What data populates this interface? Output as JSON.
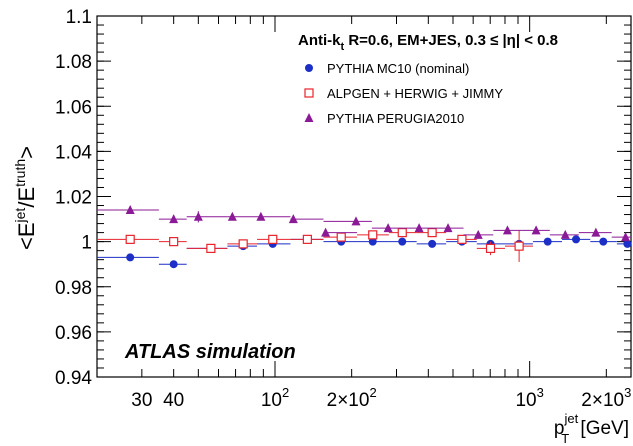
{
  "chart_data": {
    "type": "scatter",
    "xscale": "log",
    "xlim": [
      20,
      2500
    ],
    "ylim": [
      0.94,
      1.1
    ],
    "ylabel": {
      "main": "<E",
      "sup1": "jet",
      "slash": "/E",
      "sup2": "truth",
      "close": ">"
    },
    "xlabel": {
      "main": "p",
      "sup": "jet",
      "sub": "T",
      "unit": " [GeV]"
    },
    "y_ticks": [
      "0.94",
      "0.96",
      "0.98",
      "1",
      "1.02",
      "1.04",
      "1.06",
      "1.08",
      "1.1"
    ],
    "x_tick_labels": [
      {
        "value": 30,
        "text": "30"
      },
      {
        "value": 40,
        "text": "40"
      },
      {
        "value": 100,
        "base": "10",
        "exp": "2"
      },
      {
        "value": 200,
        "base": "2×10",
        "exp": "2"
      },
      {
        "value": 1000,
        "base": "10",
        "exp": "3"
      },
      {
        "value": 2000,
        "base": "2×10",
        "exp": "3"
      }
    ],
    "title": {
      "lead": "Anti-k",
      "lead_sub": "t",
      "rest": " R=0.6, EM+JES, 0.3 ≤ |η| < 0.8"
    },
    "annotation": "ATLAS simulation",
    "series": [
      {
        "name": "PYTHIA MC10 (nominal)",
        "color": "#1c2fc6",
        "marker": "circle",
        "points": [
          {
            "x": 27,
            "y": 0.993,
            "xlo": 20,
            "xhi": 35,
            "yerr": 0.0006
          },
          {
            "x": 40,
            "y": 0.99,
            "xlo": 35,
            "xhi": 45,
            "yerr": 0.0006
          },
          {
            "x": 56,
            "y": 0.997,
            "xlo": 45,
            "xhi": 65,
            "yerr": 0.0006
          },
          {
            "x": 75,
            "y": 0.998,
            "xlo": 65,
            "xhi": 85,
            "yerr": 0.0006
          },
          {
            "x": 98,
            "y": 0.999,
            "xlo": 85,
            "xhi": 115,
            "yerr": 0.0006
          },
          {
            "x": 134,
            "y": 1.001,
            "xlo": 115,
            "xhi": 155,
            "yerr": 0.0006
          },
          {
            "x": 182,
            "y": 1.0,
            "xlo": 155,
            "xhi": 210,
            "yerr": 0.0006
          },
          {
            "x": 242,
            "y": 1.0,
            "xlo": 210,
            "xhi": 280,
            "yerr": 0.0006
          },
          {
            "x": 316,
            "y": 1.0,
            "xlo": 280,
            "xhi": 360,
            "yerr": 0.0006
          },
          {
            "x": 414,
            "y": 0.999,
            "xlo": 360,
            "xhi": 470,
            "yerr": 0.0006
          },
          {
            "x": 542,
            "y": 1.0,
            "xlo": 470,
            "xhi": 620,
            "yerr": 0.0006
          },
          {
            "x": 702,
            "y": 0.999,
            "xlo": 620,
            "xhi": 800,
            "yerr": 0.0006
          },
          {
            "x": 909,
            "y": 0.999,
            "xlo": 800,
            "xhi": 1030,
            "yerr": 0.0006
          },
          {
            "x": 1177,
            "y": 1.0,
            "xlo": 1030,
            "xhi": 1340,
            "yerr": 0.0006
          },
          {
            "x": 1521,
            "y": 1.001,
            "xlo": 1340,
            "xhi": 1730,
            "yerr": 0.0006
          },
          {
            "x": 1946,
            "y": 1.0,
            "xlo": 1730,
            "xhi": 2200,
            "yerr": 0.0006
          },
          {
            "x": 2420,
            "y": 0.999,
            "xlo": 2200,
            "xhi": 2500,
            "yerr": 0.0006
          }
        ]
      },
      {
        "name": "ALPGEN + HERWIG + JIMMY",
        "color": "#e8232b",
        "marker": "square-open",
        "points": [
          {
            "x": 27,
            "y": 1.001,
            "xlo": 20,
            "xhi": 35,
            "yerr": 0.0006
          },
          {
            "x": 40,
            "y": 1.0,
            "xlo": 35,
            "xhi": 45,
            "yerr": 0.0006
          },
          {
            "x": 56,
            "y": 0.997,
            "xlo": 45,
            "xhi": 65,
            "yerr": 0.0006
          },
          {
            "x": 75,
            "y": 0.999,
            "xlo": 65,
            "xhi": 85,
            "yerr": 0.0006
          },
          {
            "x": 98,
            "y": 1.001,
            "xlo": 85,
            "xhi": 115,
            "yerr": 0.0006
          },
          {
            "x": 134,
            "y": 1.001,
            "xlo": 115,
            "xhi": 155,
            "yerr": 0.0006
          },
          {
            "x": 182,
            "y": 1.002,
            "xlo": 155,
            "xhi": 210,
            "yerr": 0.0006
          },
          {
            "x": 242,
            "y": 1.003,
            "xlo": 210,
            "xhi": 280,
            "yerr": 0.0006
          },
          {
            "x": 316,
            "y": 1.004,
            "xlo": 280,
            "xhi": 360,
            "yerr": 0.0006
          },
          {
            "x": 414,
            "y": 1.004,
            "xlo": 360,
            "xhi": 470,
            "yerr": 0.0006
          },
          {
            "x": 542,
            "y": 1.001,
            "xlo": 470,
            "xhi": 620,
            "yerr": 0.0006
          },
          {
            "x": 702,
            "y": 0.997,
            "xlo": 620,
            "xhi": 800,
            "yerr": 0.003
          },
          {
            "x": 909,
            "y": 0.998,
            "xlo": 800,
            "xhi": 1030,
            "yerr": 0.007
          }
        ]
      },
      {
        "name": "PYTHIA PERUGIA2010",
        "color": "#8b1a96",
        "marker": "triangle",
        "points": [
          {
            "x": 27,
            "y": 1.014,
            "xlo": 20,
            "xhi": 35,
            "yerr": 0.0015
          },
          {
            "x": 40,
            "y": 1.01,
            "xlo": 35,
            "xhi": 45,
            "yerr": 0.0015
          },
          {
            "x": 50,
            "y": 1.011,
            "xlo": 45,
            "xhi": 65,
            "yerr": 0.0025
          },
          {
            "x": 68,
            "y": 1.011,
            "xlo": 65,
            "xhi": 85,
            "yerr": 0.0008
          },
          {
            "x": 88,
            "y": 1.011,
            "xlo": 85,
            "xhi": 115,
            "yerr": 0.0008
          },
          {
            "x": 118,
            "y": 1.01,
            "xlo": 115,
            "xhi": 155,
            "yerr": 0.0008
          },
          {
            "x": 158,
            "y": 1.004,
            "xlo": 155,
            "xhi": 210,
            "yerr": 0.0008
          },
          {
            "x": 208,
            "y": 1.009,
            "xlo": 155,
            "xhi": 240,
            "yerr": 0.0008
          },
          {
            "x": 278,
            "y": 1.006,
            "xlo": 240,
            "xhi": 320,
            "yerr": 0.0008
          },
          {
            "x": 368,
            "y": 1.006,
            "xlo": 320,
            "xhi": 420,
            "yerr": 0.0008
          },
          {
            "x": 478,
            "y": 1.006,
            "xlo": 420,
            "xhi": 550,
            "yerr": 0.0008
          },
          {
            "x": 628,
            "y": 1.003,
            "xlo": 550,
            "xhi": 720,
            "yerr": 0.0008
          },
          {
            "x": 818,
            "y": 1.005,
            "xlo": 720,
            "xhi": 940,
            "yerr": 0.0008
          },
          {
            "x": 1060,
            "y": 1.005,
            "xlo": 940,
            "xhi": 1200,
            "yerr": 0.0008
          },
          {
            "x": 1380,
            "y": 1.003,
            "xlo": 1200,
            "xhi": 1560,
            "yerr": 0.0008
          },
          {
            "x": 1820,
            "y": 1.004,
            "xlo": 1560,
            "xhi": 2100,
            "yerr": 0.0008
          },
          {
            "x": 2380,
            "y": 1.002,
            "xlo": 2100,
            "xhi": 2500,
            "yerr": 0.0008
          }
        ]
      }
    ]
  }
}
